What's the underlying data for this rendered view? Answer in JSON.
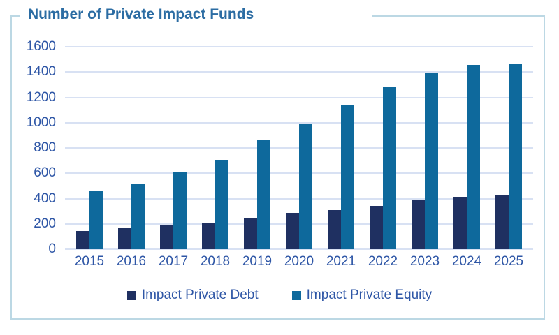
{
  "title": {
    "text": "Number of Private Impact Funds",
    "color": "#2B6CA3"
  },
  "chart_data": {
    "type": "bar",
    "title": "Number of Private Impact Funds",
    "categories": [
      "2015",
      "2016",
      "2017",
      "2018",
      "2019",
      "2020",
      "2021",
      "2022",
      "2023",
      "2024",
      "2025"
    ],
    "series": [
      {
        "name": "Impact Private Debt",
        "color": "#1F3061",
        "values": [
          145,
          165,
          185,
          205,
          250,
          285,
          310,
          340,
          390,
          415,
          425
        ]
      },
      {
        "name": "Impact Private Equity",
        "color": "#0E699C",
        "values": [
          460,
          520,
          615,
          705,
          860,
          985,
          1140,
          1285,
          1395,
          1455,
          1465
        ]
      }
    ],
    "xlabel": "",
    "ylabel": "",
    "ylim": [
      0,
      1600
    ],
    "yticks": [
      0,
      200,
      400,
      600,
      800,
      1000,
      1200,
      1400,
      1600
    ],
    "grid": "horizontal",
    "gridline_color": "#D8E1F3",
    "axis_label_color": "#2E56A6",
    "legend_position": "bottom",
    "frame_border_color": "#BCD8E4"
  }
}
